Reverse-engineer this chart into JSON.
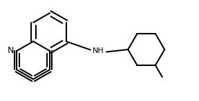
{
  "background_color": "#ffffff",
  "line_color": "#000000",
  "line_width": 1.5,
  "figsize": [
    2.88,
    1.47
  ],
  "dpi": 100,
  "label_N": "N",
  "label_NH": "NH",
  "font_size_N": 9,
  "font_size_NH": 8
}
